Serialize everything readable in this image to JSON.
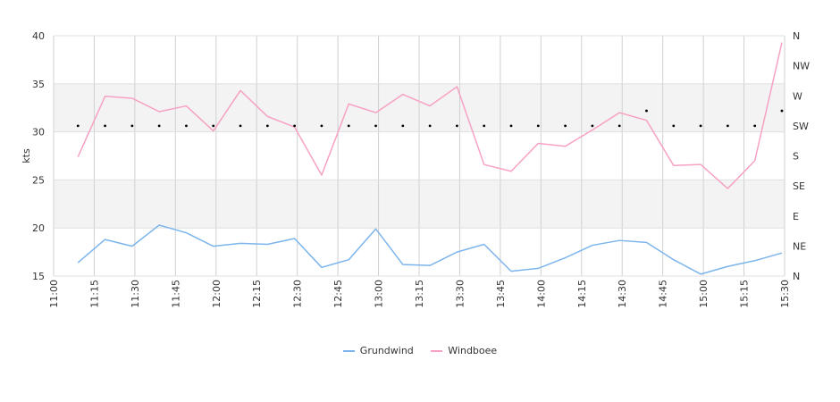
{
  "chart_data": {
    "type": "line",
    "ylabel": "kts",
    "ylim": [
      15,
      40
    ],
    "y_ticks": [
      "15",
      "20",
      "25",
      "30",
      "35",
      "40"
    ],
    "x_ticks": [
      "11:00",
      "11:15",
      "11:30",
      "11:45",
      "12:00",
      "12:15",
      "12:30",
      "12:45",
      "13:00",
      "13:15",
      "13:30",
      "13:45",
      "14:00",
      "14:15",
      "14:30",
      "14:45",
      "15:00",
      "15:15",
      "15:30"
    ],
    "direction_ticks": [
      "N",
      "NE",
      "E",
      "SE",
      "S",
      "SW",
      "W",
      "NW",
      "N"
    ],
    "grid": true,
    "legend_position": "bottom",
    "x_minutes": [
      9,
      19,
      29,
      39,
      49,
      59,
      69,
      79,
      89,
      99,
      109,
      119,
      129,
      139,
      149,
      159,
      169,
      179,
      189,
      199,
      209,
      219,
      229,
      239,
      249,
      259,
      269
    ],
    "series": [
      {
        "name": "Grundwind",
        "color": "#7cb5ec",
        "values": [
          16.4,
          18.8,
          18.1,
          20.3,
          19.5,
          18.1,
          18.4,
          18.3,
          18.9,
          15.9,
          16.7,
          19.9,
          16.2,
          16.1,
          17.5,
          18.3,
          15.5,
          15.8,
          16.9,
          18.2,
          18.7,
          18.5,
          16.7,
          15.2,
          16.0,
          16.6,
          17.4
        ]
      },
      {
        "name": "Windboee",
        "color": "#f7a1c4",
        "values": [
          27.4,
          33.7,
          33.5,
          32.1,
          32.7,
          30.1,
          34.3,
          31.6,
          30.5,
          25.5,
          32.9,
          32.0,
          33.9,
          32.7,
          34.7,
          26.6,
          25.9,
          28.8,
          28.5,
          30.2,
          32.0,
          31.2,
          26.5,
          26.6,
          24.1,
          27.0,
          39.3
        ]
      }
    ],
    "direction_series": {
      "color": "#000000",
      "values": [
        "SW",
        "SW",
        "SW",
        "SW",
        "SW",
        "SW",
        "SW",
        "SW",
        "SW",
        "SW",
        "SW",
        "SW",
        "SW",
        "SW",
        "SW",
        "SW",
        "SW",
        "SW",
        "SW",
        "SW",
        "SW",
        "WSW",
        "SW",
        "SW",
        "SW",
        "SW",
        "WSW"
      ]
    }
  },
  "legend": {
    "grundwind": "Grundwind",
    "windboee": "Windboee"
  }
}
